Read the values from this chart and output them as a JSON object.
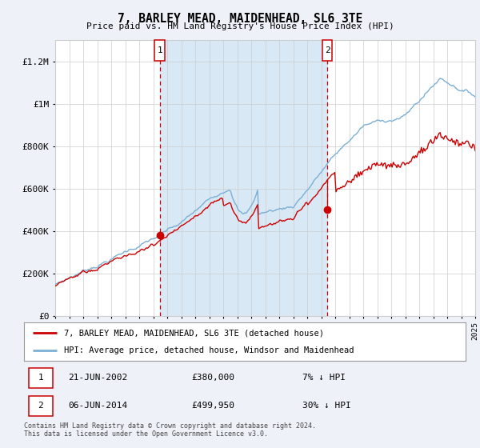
{
  "title": "7, BARLEY MEAD, MAIDENHEAD, SL6 3TE",
  "subtitle": "Price paid vs. HM Land Registry's House Price Index (HPI)",
  "legend_line1": "7, BARLEY MEAD, MAIDENHEAD, SL6 3TE (detached house)",
  "legend_line2": "HPI: Average price, detached house, Windsor and Maidenhead",
  "annotation1_date": "21-JUN-2002",
  "annotation1_price": "£380,000",
  "annotation1_hpi": "7% ↓ HPI",
  "annotation2_date": "06-JUN-2014",
  "annotation2_price": "£499,950",
  "annotation2_hpi": "30% ↓ HPI",
  "footer": "Contains HM Land Registry data © Crown copyright and database right 2024.\nThis data is licensed under the Open Government Licence v3.0.",
  "hpi_color": "#7bafd4",
  "price_color": "#cc0000",
  "bg_color": "#eef2f8",
  "plot_bg": "#ffffff",
  "shade_color": "#d8e8f5",
  "grid_color": "#cccccc",
  "ann_box_color": "#cc0000",
  "x_start_year": 1995,
  "x_end_year": 2025,
  "ylim_max": 1300000,
  "yticks": [
    0,
    200000,
    400000,
    600000,
    800000,
    1000000,
    1200000
  ],
  "ytick_labels": [
    "£0",
    "£200K",
    "£400K",
    "£600K",
    "£800K",
    "£1M",
    "£1.2M"
  ],
  "marker1_year": 2002.47,
  "marker1_value": 380000,
  "marker2_year": 2014.43,
  "marker2_value": 499950,
  "seed": 7
}
